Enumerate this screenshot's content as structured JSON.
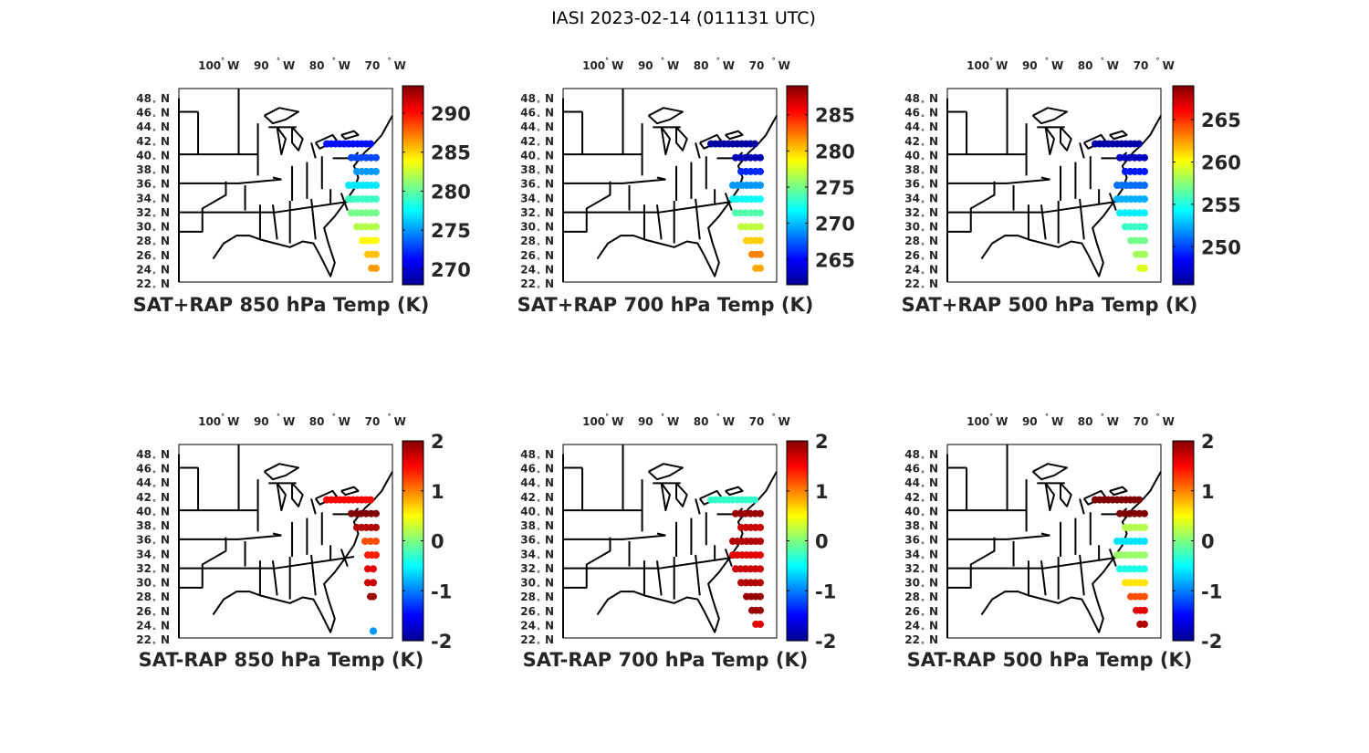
{
  "figure_title": "IASI 2023-02-14 (011131 UTC)",
  "lon_labels": [
    "100",
    "90",
    "80",
    "70"
  ],
  "lon_suffix": "W",
  "lat_labels": [
    "48",
    "46",
    "44",
    "42",
    "40",
    "38",
    "36",
    "34",
    "32",
    "30",
    "28",
    "26",
    "24",
    "22"
  ],
  "lat_suffix": "N",
  "degree_symbol": "°",
  "colormap": "jet",
  "chart_data": [
    {
      "type": "scatter-map",
      "title": "SAT+RAP 850 hPa Temp (K)",
      "lon_range": [
        -106,
        -67
      ],
      "lat_range": [
        22,
        50
      ],
      "clim": [
        268,
        293.5
      ],
      "cbar_ticks": [
        270,
        275,
        280,
        285,
        290
      ],
      "swath": [
        {
          "lat": 42,
          "lon_range": [
            -79,
            -71
          ],
          "value": 271.5
        },
        {
          "lat": 40,
          "lon_range": [
            -74.5,
            -70
          ],
          "value": 273
        },
        {
          "lat": 38,
          "lon_range": [
            -73.5,
            -70
          ],
          "value": 275
        },
        {
          "lat": 36,
          "lon_range": [
            -75,
            -70
          ],
          "value": 277
        },
        {
          "lat": 34,
          "lon_range": [
            -75,
            -70
          ],
          "value": 279
        },
        {
          "lat": 32,
          "lon_range": [
            -74.5,
            -70
          ],
          "value": 280.5
        },
        {
          "lat": 30,
          "lon_range": [
            -73.5,
            -70
          ],
          "value": 282
        },
        {
          "lat": 28,
          "lon_range": [
            -72.5,
            -70
          ],
          "value": 284
        },
        {
          "lat": 26,
          "lon_range": [
            -71.5,
            -70
          ],
          "value": 285.5
        },
        {
          "lat": 24,
          "lon_range": [
            -70.8,
            -70
          ],
          "value": 286.5
        }
      ]
    },
    {
      "type": "scatter-map",
      "title": "SAT+RAP 700 hPa Temp (K)",
      "lon_range": [
        -106,
        -67
      ],
      "lat_range": [
        22,
        50
      ],
      "clim": [
        261.5,
        289
      ],
      "cbar_ticks": [
        265,
        270,
        275,
        280,
        285
      ],
      "swath": [
        {
          "lat": 42,
          "lon_range": [
            -79,
            -71
          ],
          "value": 262.5
        },
        {
          "lat": 40,
          "lon_range": [
            -74.5,
            -70
          ],
          "value": 263
        },
        {
          "lat": 38,
          "lon_range": [
            -73.5,
            -70
          ],
          "value": 266
        },
        {
          "lat": 36,
          "lon_range": [
            -75,
            -70
          ],
          "value": 269
        },
        {
          "lat": 34,
          "lon_range": [
            -75,
            -70
          ],
          "value": 272
        },
        {
          "lat": 32,
          "lon_range": [
            -74.5,
            -70
          ],
          "value": 274
        },
        {
          "lat": 30,
          "lon_range": [
            -73.5,
            -70
          ],
          "value": 277
        },
        {
          "lat": 28,
          "lon_range": [
            -72.5,
            -70
          ],
          "value": 280
        },
        {
          "lat": 26,
          "lon_range": [
            -71.5,
            -70
          ],
          "value": 282
        },
        {
          "lat": 24,
          "lon_range": [
            -70.8,
            -70
          ],
          "value": 281
        }
      ]
    },
    {
      "type": "scatter-map",
      "title": "SAT+RAP 500 hPa Temp (K)",
      "lon_range": [
        -106,
        -67
      ],
      "lat_range": [
        22,
        50
      ],
      "clim": [
        245.5,
        269
      ],
      "cbar_ticks": [
        250,
        255,
        260,
        265
      ],
      "swath": [
        {
          "lat": 42,
          "lon_range": [
            -79,
            -71
          ],
          "value": 246.5
        },
        {
          "lat": 40,
          "lon_range": [
            -74.5,
            -70
          ],
          "value": 247
        },
        {
          "lat": 38,
          "lon_range": [
            -73.5,
            -70
          ],
          "value": 249
        },
        {
          "lat": 36,
          "lon_range": [
            -75,
            -70
          ],
          "value": 251
        },
        {
          "lat": 34,
          "lon_range": [
            -75,
            -70
          ],
          "value": 252.5
        },
        {
          "lat": 32,
          "lon_range": [
            -74.5,
            -70
          ],
          "value": 254
        },
        {
          "lat": 30,
          "lon_range": [
            -73.5,
            -70
          ],
          "value": 255.5
        },
        {
          "lat": 28,
          "lon_range": [
            -72.5,
            -70
          ],
          "value": 257
        },
        {
          "lat": 26,
          "lon_range": [
            -71.5,
            -70
          ],
          "value": 258
        },
        {
          "lat": 24,
          "lon_range": [
            -70.8,
            -70
          ],
          "value": 259.5
        }
      ]
    },
    {
      "type": "scatter-map",
      "title": "SAT-RAP 850 hPa Temp (K)",
      "lon_range": [
        -106,
        -67
      ],
      "lat_range": [
        22,
        50
      ],
      "clim": [
        -2,
        2
      ],
      "cbar_ticks": [
        2,
        1,
        0,
        -1,
        -2
      ],
      "swath": [
        {
          "lat": 42,
          "lon_range": [
            -79,
            -71
          ],
          "value": 1.5
        },
        {
          "lat": 40,
          "lon_range": [
            -74.5,
            -70
          ],
          "value": 2
        },
        {
          "lat": 38,
          "lon_range": [
            -73.5,
            -70
          ],
          "value": 1.8
        },
        {
          "lat": 36,
          "lon_range": [
            -72,
            -70
          ],
          "value": 1.2
        },
        {
          "lat": 34,
          "lon_range": [
            -71.5,
            -70
          ],
          "value": 1.4
        },
        {
          "lat": 32,
          "lon_range": [
            -71.5,
            -70.5
          ],
          "value": 1.6
        },
        {
          "lat": 30,
          "lon_range": [
            -71.5,
            -70.5
          ],
          "value": 1.7
        },
        {
          "lat": 28,
          "lon_range": [
            -71,
            -70.5
          ],
          "value": 1.9
        },
        {
          "lat": 23,
          "lon_range": [
            -70.5,
            -70.5
          ],
          "value": -0.9
        }
      ]
    },
    {
      "type": "scatter-map",
      "title": "SAT-RAP 700 hPa Temp (K)",
      "lon_range": [
        -106,
        -67
      ],
      "lat_range": [
        22,
        50
      ],
      "clim": [
        -2,
        2
      ],
      "cbar_ticks": [
        2,
        1,
        0,
        -1,
        -2
      ],
      "swath": [
        {
          "lat": 42,
          "lon_range": [
            -79,
            -71
          ],
          "value": -0.3
        },
        {
          "lat": 40,
          "lon_range": [
            -74.5,
            -70
          ],
          "value": 1.9
        },
        {
          "lat": 38,
          "lon_range": [
            -73.5,
            -70
          ],
          "value": 1.7
        },
        {
          "lat": 36,
          "lon_range": [
            -75,
            -70
          ],
          "value": 1.8
        },
        {
          "lat": 34,
          "lon_range": [
            -75,
            -70
          ],
          "value": 1.6
        },
        {
          "lat": 32,
          "lon_range": [
            -74.5,
            -70
          ],
          "value": 1.7
        },
        {
          "lat": 30,
          "lon_range": [
            -73.5,
            -70
          ],
          "value": 1.8
        },
        {
          "lat": 28,
          "lon_range": [
            -72.5,
            -70
          ],
          "value": 1.9
        },
        {
          "lat": 26,
          "lon_range": [
            -71.5,
            -70
          ],
          "value": 1.9
        },
        {
          "lat": 24,
          "lon_range": [
            -70.8,
            -70
          ],
          "value": 1.6
        }
      ]
    },
    {
      "type": "scatter-map",
      "title": "SAT-RAP 500 hPa Temp (K)",
      "lon_range": [
        -106,
        -67
      ],
      "lat_range": [
        22,
        50
      ],
      "clim": [
        -2,
        2
      ],
      "cbar_ticks": [
        2,
        1,
        0,
        -1,
        -2
      ],
      "swath": [
        {
          "lat": 42,
          "lon_range": [
            -79,
            -71
          ],
          "value": 2
        },
        {
          "lat": 40,
          "lon_range": [
            -74.5,
            -70
          ],
          "value": 2
        },
        {
          "lat": 38,
          "lon_range": [
            -73.5,
            -70
          ],
          "value": 0.2
        },
        {
          "lat": 36,
          "lon_range": [
            -75,
            -70
          ],
          "value": -0.6
        },
        {
          "lat": 34,
          "lon_range": [
            -75,
            -70
          ],
          "value": 0.1
        },
        {
          "lat": 32,
          "lon_range": [
            -74.5,
            -70
          ],
          "value": -0.4
        },
        {
          "lat": 30,
          "lon_range": [
            -73.5,
            -70
          ],
          "value": 0.6
        },
        {
          "lat": 28,
          "lon_range": [
            -72.5,
            -70
          ],
          "value": 1.2
        },
        {
          "lat": 26,
          "lon_range": [
            -71.5,
            -70
          ],
          "value": 1.6
        },
        {
          "lat": 24,
          "lon_range": [
            -70.8,
            -70
          ],
          "value": 1.8
        }
      ]
    }
  ]
}
